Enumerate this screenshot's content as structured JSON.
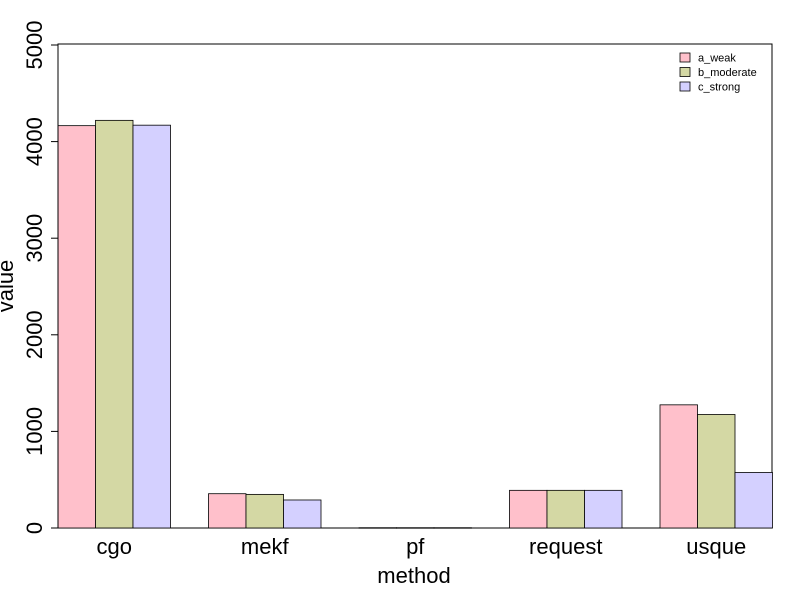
{
  "chart_data": {
    "type": "bar",
    "title": "",
    "xlabel": "method",
    "ylabel": "value",
    "categories": [
      "cgo",
      "mekf",
      "pf",
      "request",
      "usque"
    ],
    "series": [
      {
        "name": "a_weak",
        "color": "#FFC0CB",
        "values": [
          4165,
          355,
          3,
          390,
          1275
        ]
      },
      {
        "name": "b_moderate",
        "color": "#D4D8A4",
        "values": [
          4220,
          348,
          3,
          390,
          1175
        ]
      },
      {
        "name": "c_strong",
        "color": "#D4D0FF",
        "values": [
          4170,
          290,
          3,
          390,
          575
        ]
      }
    ],
    "ylim": [
      0,
      5000
    ],
    "yticks": [
      0,
      1000,
      2000,
      3000,
      4000,
      5000
    ],
    "grid": false,
    "legend": "top-right"
  }
}
